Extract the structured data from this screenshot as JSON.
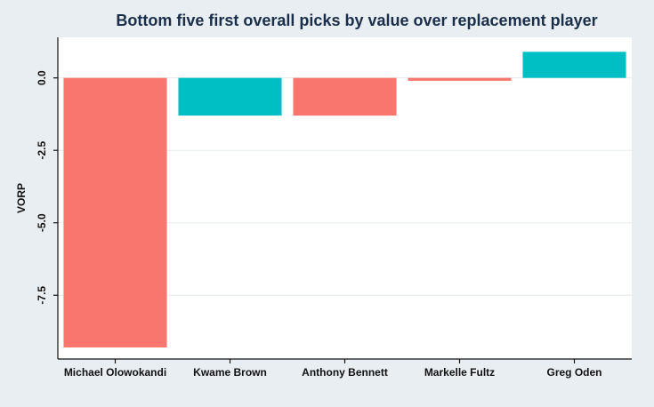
{
  "chart_data": {
    "type": "bar",
    "title": "Bottom five first overall picks by value over replacement player",
    "xlabel": "",
    "ylabel": "VORP",
    "categories": [
      "Michael Olowokandi",
      "Kwame Brown",
      "Anthony Bennett",
      "Markelle Fultz",
      "Greg Oden"
    ],
    "values": [
      -9.3,
      -1.3,
      -1.3,
      -0.1,
      0.9
    ],
    "colors": [
      "#f8766d",
      "#00bfc4",
      "#f8766d",
      "#f8766d",
      "#00bfc4"
    ],
    "yticks": [
      0.0,
      -2.5,
      -5.0,
      -7.5
    ],
    "ytick_labels": [
      "0.0",
      "-2.5",
      "-5.0",
      "-7.5"
    ],
    "ylim": [
      -9.7,
      1.4
    ],
    "grid": true,
    "legend": "none"
  }
}
